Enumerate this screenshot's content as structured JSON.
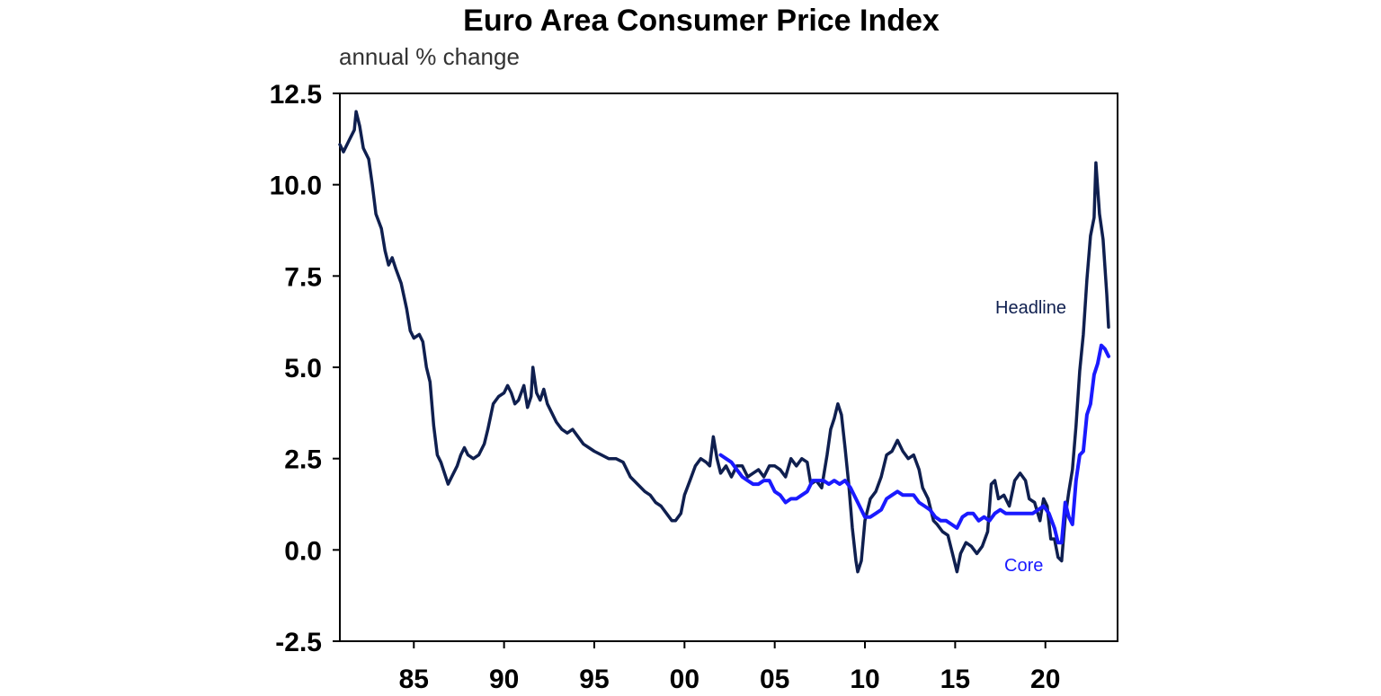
{
  "chart_data": {
    "type": "line",
    "title": "Euro Area Consumer Price Index",
    "subtitle": "annual % change",
    "xlabel": "",
    "ylabel": "",
    "xlim": [
      1980.9,
      2024.0
    ],
    "ylim": [
      -2.5,
      12.5
    ],
    "y_ticks": [
      "12.5",
      "10.0",
      "7.5",
      "5.0",
      "2.5",
      "0.0",
      "-2.5"
    ],
    "x_ticks": [
      {
        "year": 1985,
        "label": "85"
      },
      {
        "year": 1990,
        "label": "90"
      },
      {
        "year": 1995,
        "label": "95"
      },
      {
        "year": 2000,
        "label": "00"
      },
      {
        "year": 2005,
        "label": "05"
      },
      {
        "year": 2010,
        "label": "10"
      },
      {
        "year": 2015,
        "label": "15"
      },
      {
        "year": 2020,
        "label": "20"
      }
    ],
    "grid": false,
    "colors": {
      "headline": "#0f1f4f",
      "core": "#1a1aff",
      "axis": "#000000"
    },
    "annotations": [
      {
        "text": "Headline",
        "series": "headline"
      },
      {
        "text": "Core",
        "series": "core"
      }
    ],
    "series": [
      {
        "name": "Headline",
        "color": "#0f1f4f",
        "points": [
          [
            1980.9,
            11.1
          ],
          [
            1981.1,
            10.9
          ],
          [
            1981.4,
            11.2
          ],
          [
            1981.7,
            11.5
          ],
          [
            1981.8,
            12.0
          ],
          [
            1982.0,
            11.6
          ],
          [
            1982.2,
            11.0
          ],
          [
            1982.5,
            10.7
          ],
          [
            1982.7,
            10.0
          ],
          [
            1982.9,
            9.2
          ],
          [
            1983.2,
            8.8
          ],
          [
            1983.4,
            8.2
          ],
          [
            1983.6,
            7.8
          ],
          [
            1983.8,
            8.0
          ],
          [
            1984.0,
            7.7
          ],
          [
            1984.3,
            7.3
          ],
          [
            1984.6,
            6.6
          ],
          [
            1984.8,
            6.0
          ],
          [
            1985.0,
            5.8
          ],
          [
            1985.3,
            5.9
          ],
          [
            1985.5,
            5.7
          ],
          [
            1985.7,
            5.0
          ],
          [
            1985.9,
            4.6
          ],
          [
            1986.1,
            3.4
          ],
          [
            1986.3,
            2.6
          ],
          [
            1986.5,
            2.4
          ],
          [
            1986.7,
            2.1
          ],
          [
            1986.9,
            1.8
          ],
          [
            1987.1,
            2.0
          ],
          [
            1987.4,
            2.3
          ],
          [
            1987.6,
            2.6
          ],
          [
            1987.8,
            2.8
          ],
          [
            1988.0,
            2.6
          ],
          [
            1988.3,
            2.5
          ],
          [
            1988.6,
            2.6
          ],
          [
            1988.9,
            2.9
          ],
          [
            1989.1,
            3.3
          ],
          [
            1989.4,
            4.0
          ],
          [
            1989.7,
            4.2
          ],
          [
            1990.0,
            4.3
          ],
          [
            1990.2,
            4.5
          ],
          [
            1990.4,
            4.3
          ],
          [
            1990.6,
            4.0
          ],
          [
            1990.8,
            4.1
          ],
          [
            1991.1,
            4.5
          ],
          [
            1991.3,
            3.9
          ],
          [
            1991.5,
            4.2
          ],
          [
            1991.6,
            5.0
          ],
          [
            1991.8,
            4.3
          ],
          [
            1992.0,
            4.1
          ],
          [
            1992.2,
            4.4
          ],
          [
            1992.4,
            4.0
          ],
          [
            1992.7,
            3.7
          ],
          [
            1992.9,
            3.5
          ],
          [
            1993.2,
            3.3
          ],
          [
            1993.5,
            3.2
          ],
          [
            1993.8,
            3.3
          ],
          [
            1994.1,
            3.1
          ],
          [
            1994.4,
            2.9
          ],
          [
            1994.7,
            2.8
          ],
          [
            1995.0,
            2.7
          ],
          [
            1995.4,
            2.6
          ],
          [
            1995.8,
            2.5
          ],
          [
            1996.2,
            2.5
          ],
          [
            1996.6,
            2.4
          ],
          [
            1997.0,
            2.0
          ],
          [
            1997.4,
            1.8
          ],
          [
            1997.8,
            1.6
          ],
          [
            1998.1,
            1.5
          ],
          [
            1998.4,
            1.3
          ],
          [
            1998.7,
            1.2
          ],
          [
            1999.0,
            1.0
          ],
          [
            1999.3,
            0.8
          ],
          [
            1999.5,
            0.8
          ],
          [
            1999.8,
            1.0
          ],
          [
            2000.0,
            1.5
          ],
          [
            2000.3,
            1.9
          ],
          [
            2000.6,
            2.3
          ],
          [
            2000.9,
            2.5
          ],
          [
            2001.2,
            2.4
          ],
          [
            2001.4,
            2.3
          ],
          [
            2001.6,
            3.1
          ],
          [
            2001.8,
            2.5
          ],
          [
            2002.0,
            2.1
          ],
          [
            2002.3,
            2.3
          ],
          [
            2002.6,
            2.0
          ],
          [
            2002.9,
            2.3
          ],
          [
            2003.2,
            2.3
          ],
          [
            2003.5,
            2.0
          ],
          [
            2003.8,
            2.1
          ],
          [
            2004.1,
            2.2
          ],
          [
            2004.4,
            2.0
          ],
          [
            2004.7,
            2.3
          ],
          [
            2005.0,
            2.3
          ],
          [
            2005.3,
            2.2
          ],
          [
            2005.6,
            2.0
          ],
          [
            2005.9,
            2.5
          ],
          [
            2006.2,
            2.3
          ],
          [
            2006.5,
            2.5
          ],
          [
            2006.8,
            2.4
          ],
          [
            2007.0,
            1.8
          ],
          [
            2007.3,
            1.9
          ],
          [
            2007.6,
            1.7
          ],
          [
            2007.9,
            2.6
          ],
          [
            2008.1,
            3.3
          ],
          [
            2008.3,
            3.6
          ],
          [
            2008.5,
            4.0
          ],
          [
            2008.7,
            3.7
          ],
          [
            2008.9,
            2.8
          ],
          [
            2009.1,
            1.8
          ],
          [
            2009.3,
            0.6
          ],
          [
            2009.5,
            -0.3
          ],
          [
            2009.6,
            -0.6
          ],
          [
            2009.8,
            -0.3
          ],
          [
            2010.0,
            0.8
          ],
          [
            2010.3,
            1.4
          ],
          [
            2010.6,
            1.6
          ],
          [
            2010.9,
            2.0
          ],
          [
            2011.2,
            2.6
          ],
          [
            2011.5,
            2.7
          ],
          [
            2011.8,
            3.0
          ],
          [
            2012.1,
            2.7
          ],
          [
            2012.4,
            2.5
          ],
          [
            2012.7,
            2.6
          ],
          [
            2013.0,
            2.2
          ],
          [
            2013.2,
            1.7
          ],
          [
            2013.5,
            1.4
          ],
          [
            2013.8,
            0.8
          ],
          [
            2014.0,
            0.7
          ],
          [
            2014.3,
            0.5
          ],
          [
            2014.6,
            0.4
          ],
          [
            2014.9,
            -0.2
          ],
          [
            2015.1,
            -0.6
          ],
          [
            2015.3,
            -0.1
          ],
          [
            2015.6,
            0.2
          ],
          [
            2015.9,
            0.1
          ],
          [
            2016.2,
            -0.1
          ],
          [
            2016.5,
            0.1
          ],
          [
            2016.8,
            0.5
          ],
          [
            2017.0,
            1.8
          ],
          [
            2017.2,
            1.9
          ],
          [
            2017.4,
            1.4
          ],
          [
            2017.7,
            1.5
          ],
          [
            2018.0,
            1.2
          ],
          [
            2018.3,
            1.9
          ],
          [
            2018.6,
            2.1
          ],
          [
            2018.9,
            1.9
          ],
          [
            2019.1,
            1.4
          ],
          [
            2019.4,
            1.3
          ],
          [
            2019.7,
            0.8
          ],
          [
            2019.9,
            1.4
          ],
          [
            2020.1,
            1.2
          ],
          [
            2020.3,
            0.3
          ],
          [
            2020.5,
            0.3
          ],
          [
            2020.7,
            -0.2
          ],
          [
            2020.9,
            -0.3
          ],
          [
            2021.1,
            0.9
          ],
          [
            2021.3,
            1.6
          ],
          [
            2021.5,
            2.2
          ],
          [
            2021.7,
            3.4
          ],
          [
            2021.9,
            4.9
          ],
          [
            2022.1,
            5.9
          ],
          [
            2022.3,
            7.4
          ],
          [
            2022.5,
            8.6
          ],
          [
            2022.7,
            9.1
          ],
          [
            2022.8,
            10.6
          ],
          [
            2023.0,
            9.2
          ],
          [
            2023.2,
            8.5
          ],
          [
            2023.4,
            7.0
          ],
          [
            2023.5,
            6.1
          ]
        ]
      },
      {
        "name": "Core",
        "color": "#1a1aff",
        "points": [
          [
            2002.0,
            2.6
          ],
          [
            2002.3,
            2.5
          ],
          [
            2002.6,
            2.4
          ],
          [
            2002.9,
            2.2
          ],
          [
            2003.2,
            2.0
          ],
          [
            2003.5,
            1.9
          ],
          [
            2003.8,
            1.8
          ],
          [
            2004.1,
            1.8
          ],
          [
            2004.4,
            1.9
          ],
          [
            2004.7,
            1.9
          ],
          [
            2005.0,
            1.6
          ],
          [
            2005.3,
            1.5
          ],
          [
            2005.6,
            1.3
          ],
          [
            2005.9,
            1.4
          ],
          [
            2006.2,
            1.4
          ],
          [
            2006.5,
            1.5
          ],
          [
            2006.8,
            1.6
          ],
          [
            2007.1,
            1.9
          ],
          [
            2007.4,
            1.9
          ],
          [
            2007.7,
            1.9
          ],
          [
            2008.0,
            1.8
          ],
          [
            2008.3,
            1.9
          ],
          [
            2008.6,
            1.8
          ],
          [
            2008.9,
            1.9
          ],
          [
            2009.2,
            1.7
          ],
          [
            2009.5,
            1.4
          ],
          [
            2009.8,
            1.1
          ],
          [
            2010.0,
            0.9
          ],
          [
            2010.3,
            0.9
          ],
          [
            2010.6,
            1.0
          ],
          [
            2010.9,
            1.1
          ],
          [
            2011.2,
            1.4
          ],
          [
            2011.5,
            1.5
          ],
          [
            2011.8,
            1.6
          ],
          [
            2012.1,
            1.5
          ],
          [
            2012.4,
            1.5
          ],
          [
            2012.7,
            1.5
          ],
          [
            2013.0,
            1.3
          ],
          [
            2013.3,
            1.2
          ],
          [
            2013.6,
            1.1
          ],
          [
            2013.9,
            0.9
          ],
          [
            2014.2,
            0.8
          ],
          [
            2014.5,
            0.8
          ],
          [
            2014.8,
            0.7
          ],
          [
            2015.1,
            0.6
          ],
          [
            2015.4,
            0.9
          ],
          [
            2015.7,
            1.0
          ],
          [
            2016.0,
            1.0
          ],
          [
            2016.3,
            0.8
          ],
          [
            2016.6,
            0.9
          ],
          [
            2016.9,
            0.8
          ],
          [
            2017.2,
            1.0
          ],
          [
            2017.5,
            1.1
          ],
          [
            2017.8,
            1.0
          ],
          [
            2018.1,
            1.0
          ],
          [
            2018.4,
            1.0
          ],
          [
            2018.7,
            1.0
          ],
          [
            2019.0,
            1.0
          ],
          [
            2019.3,
            1.0
          ],
          [
            2019.6,
            1.1
          ],
          [
            2019.9,
            1.2
          ],
          [
            2020.2,
            1.0
          ],
          [
            2020.5,
            0.6
          ],
          [
            2020.7,
            0.2
          ],
          [
            2020.9,
            0.2
          ],
          [
            2021.1,
            1.3
          ],
          [
            2021.3,
            0.9
          ],
          [
            2021.5,
            0.7
          ],
          [
            2021.7,
            1.9
          ],
          [
            2021.9,
            2.6
          ],
          [
            2022.1,
            2.7
          ],
          [
            2022.3,
            3.7
          ],
          [
            2022.5,
            4.0
          ],
          [
            2022.7,
            4.8
          ],
          [
            2022.9,
            5.1
          ],
          [
            2023.1,
            5.6
          ],
          [
            2023.3,
            5.5
          ],
          [
            2023.5,
            5.3
          ]
        ]
      }
    ]
  }
}
